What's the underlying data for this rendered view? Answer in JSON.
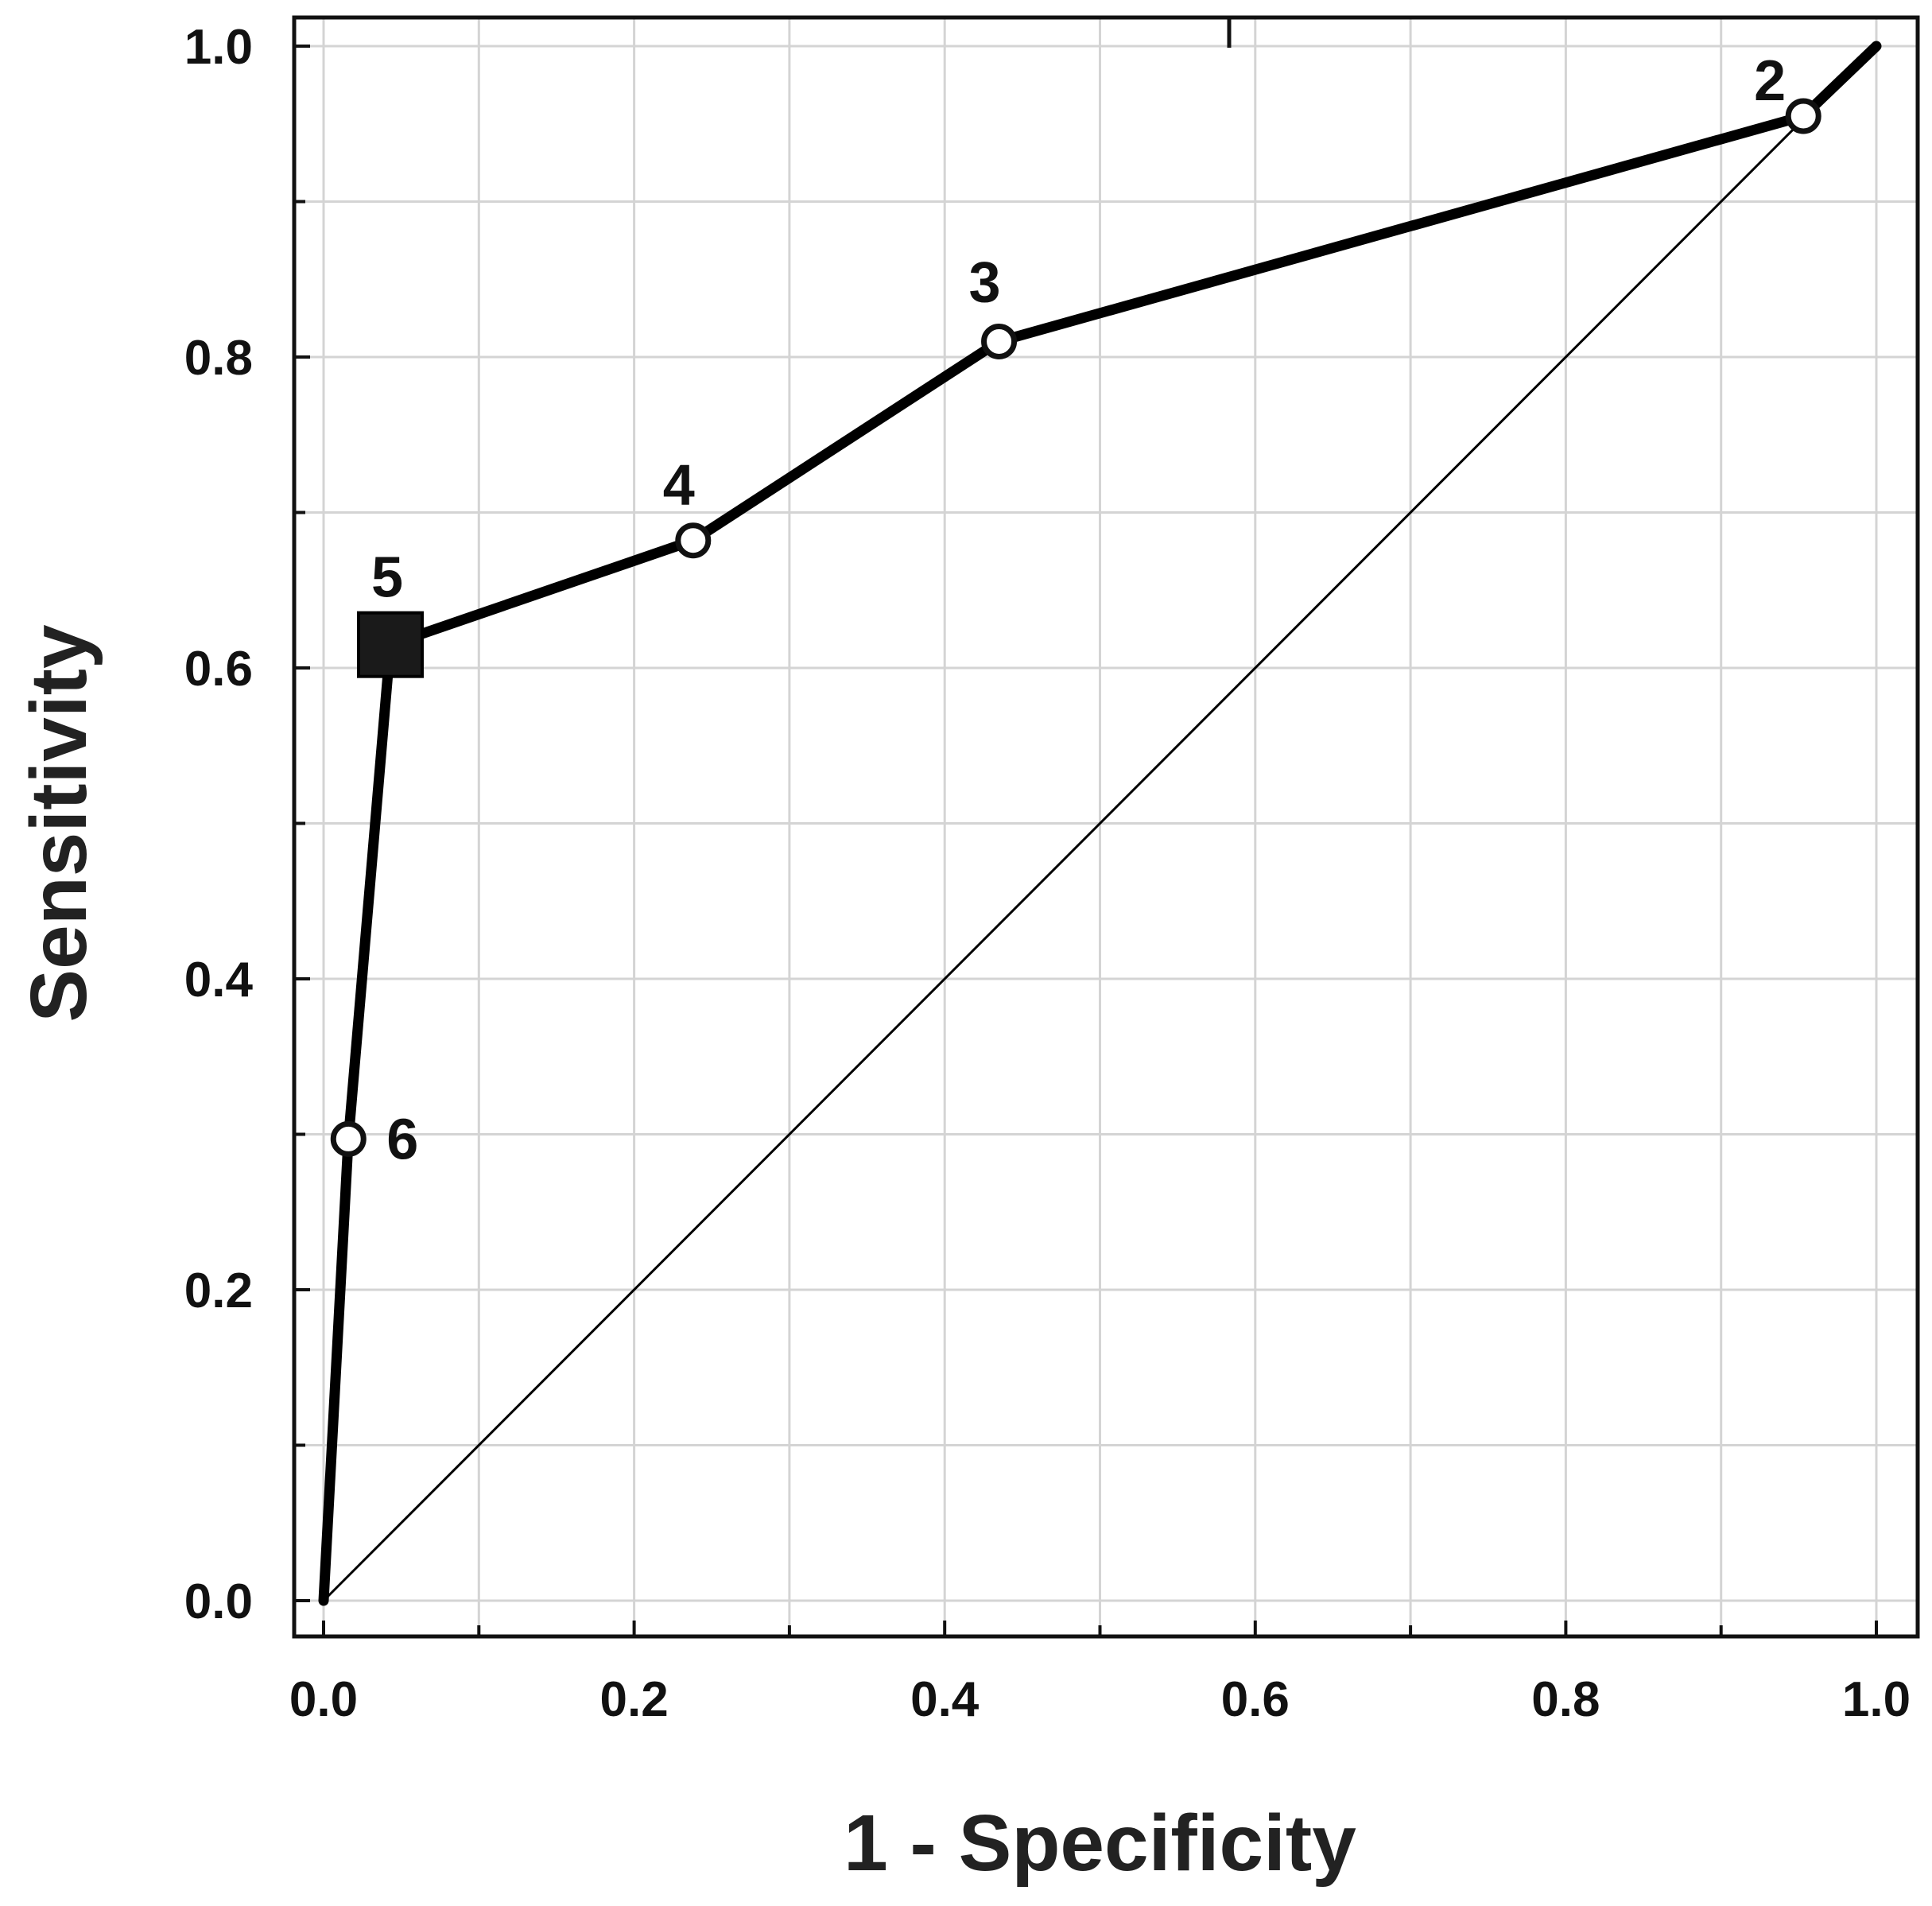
{
  "chart_data": {
    "type": "line",
    "title": "",
    "xlabel": "1 - Specificity",
    "ylabel": "Sensitivity",
    "xlim": [
      0,
      1
    ],
    "ylim": [
      0,
      1
    ],
    "x_ticks": [
      "0.0",
      "0.2",
      "0.4",
      "0.6",
      "0.8",
      "1.0"
    ],
    "y_ticks": [
      "0.0",
      "0.2",
      "0.4",
      "0.6",
      "0.8",
      "1.0"
    ],
    "grid": true,
    "legend": "none",
    "series": [
      {
        "points": [
          {
            "x": 0.0,
            "y": 0.0
          },
          {
            "x": 0.016,
            "y": 0.297
          },
          {
            "x": 0.043,
            "y": 0.615
          },
          {
            "x": 0.238,
            "y": 0.682
          },
          {
            "x": 0.435,
            "y": 0.81
          },
          {
            "x": 0.953,
            "y": 0.955
          },
          {
            "x": 1.0,
            "y": 1.0
          }
        ],
        "color": "#000000"
      },
      {
        "points": [
          {
            "x": 0.0,
            "y": 0.0
          },
          {
            "x": 1.0,
            "y": 1.0
          }
        ],
        "color": "#000000"
      }
    ],
    "annotations": [
      {
        "text": "6",
        "x": 0.016,
        "y": 0.297,
        "marker": "open-circle"
      },
      {
        "text": "5",
        "x": 0.043,
        "y": 0.615,
        "marker": "filled-square"
      },
      {
        "text": "4",
        "x": 0.238,
        "y": 0.682,
        "marker": "open-circle"
      },
      {
        "text": "3",
        "x": 0.435,
        "y": 0.81,
        "marker": "open-circle"
      },
      {
        "text": "2",
        "x": 0.953,
        "y": 0.955,
        "marker": "open-circle"
      }
    ]
  }
}
